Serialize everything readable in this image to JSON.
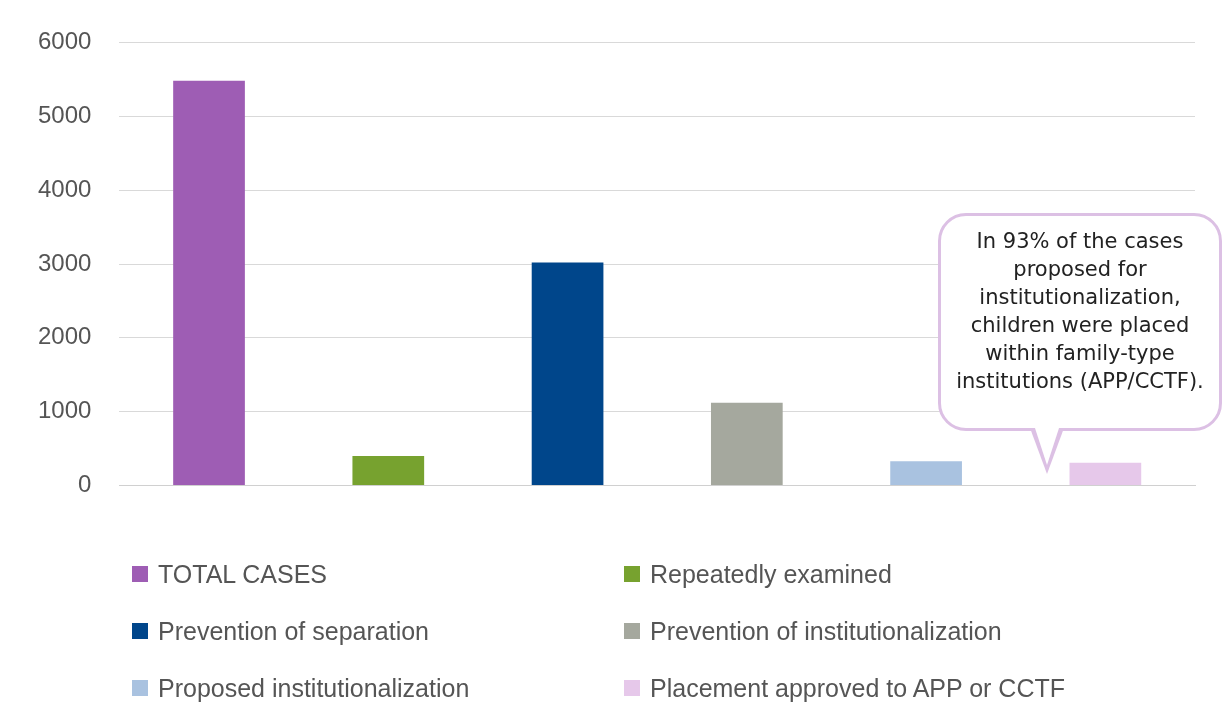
{
  "chart_data": {
    "type": "bar",
    "categories": [
      null,
      null,
      null,
      null,
      null,
      null
    ],
    "series": [
      {
        "name": "TOTAL CASES",
        "color": "#9e5db4",
        "values": [
          5480,
          null,
          null,
          null,
          null,
          null
        ]
      },
      {
        "name": "Repeatedly examined",
        "color": "#77a22f",
        "values": [
          null,
          400,
          null,
          null,
          null,
          null
        ]
      },
      {
        "name": "Prevention of separation",
        "color": "#00468b",
        "values": [
          null,
          null,
          3020,
          null,
          null,
          null
        ]
      },
      {
        "name": "Prevention of institutionalization",
        "color": "#a5a89e",
        "values": [
          null,
          null,
          null,
          1120,
          null,
          null
        ]
      },
      {
        "name": "Proposed institutionalization",
        "color": "#a9c2e0",
        "values": [
          null,
          null,
          null,
          null,
          330,
          null
        ]
      },
      {
        "name": "Placement approved to APP or CCTF",
        "color": "#e6c8ea",
        "values": [
          null,
          null,
          null,
          null,
          null,
          310
        ]
      }
    ],
    "ylim": [
      0,
      6000
    ],
    "yticks": [
      0,
      1000,
      2000,
      3000,
      4000,
      5000,
      6000
    ],
    "grid": "y",
    "legend": "bottom",
    "annotations": [
      "In 93% of the cases proposed for institutionalization, children were placed within family-type institutions (APP/CCTF)."
    ]
  }
}
